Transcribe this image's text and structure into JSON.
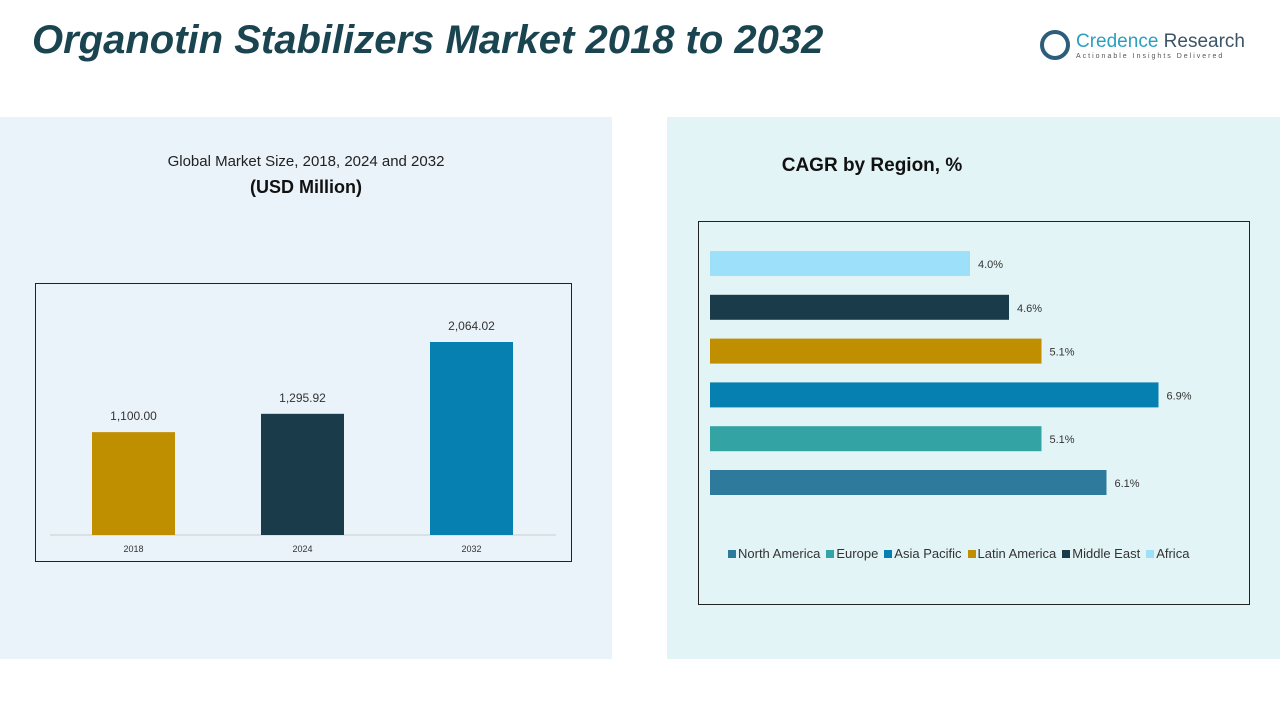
{
  "title": "Organotin Stabilizers Market 2018 to 2032",
  "logo": {
    "name_a": "Credence",
    "name_b": " Research",
    "tagline": "Actionable Insights Delivered"
  },
  "chart_data": [
    {
      "type": "bar",
      "title": "Global Market Size, 2018, 2024 and 2032",
      "subtitle": "(USD Million)",
      "categories": [
        "2018",
        "2024",
        "2032"
      ],
      "values": [
        1100.0,
        1295.92,
        2064.02
      ],
      "labels": [
        "1,100.00",
        "1,295.92",
        "2,064.02"
      ],
      "colors": [
        "#bf8f00",
        "#1a3c4a",
        "#0580b0"
      ],
      "ylim": [
        0,
        2300
      ]
    },
    {
      "type": "bar",
      "orientation": "horizontal",
      "title": "CAGR by Region, %",
      "categories": [
        "Africa",
        "Middle East",
        "Latin America",
        "Asia Pacific",
        "Europe",
        "North America"
      ],
      "values": [
        4.0,
        4.6,
        5.1,
        6.9,
        5.1,
        6.1
      ],
      "labels": [
        "4.0%",
        "4.6%",
        "5.1%",
        "6.9%",
        "5.1%",
        "6.1%"
      ],
      "colors": [
        "#9de0fa",
        "#1a3c4a",
        "#bf8f00",
        "#0580b0",
        "#33a3a3",
        "#2e7a9c"
      ],
      "legend": [
        "North America",
        "Europe",
        "Asia Pacific",
        "Latin America",
        "Middle East",
        "Africa"
      ],
      "legend_colors": [
        "#2e7a9c",
        "#33a3a3",
        "#0580b0",
        "#bf8f00",
        "#1a3c4a",
        "#9de0fa"
      ],
      "legend_position": "bottom"
    }
  ]
}
